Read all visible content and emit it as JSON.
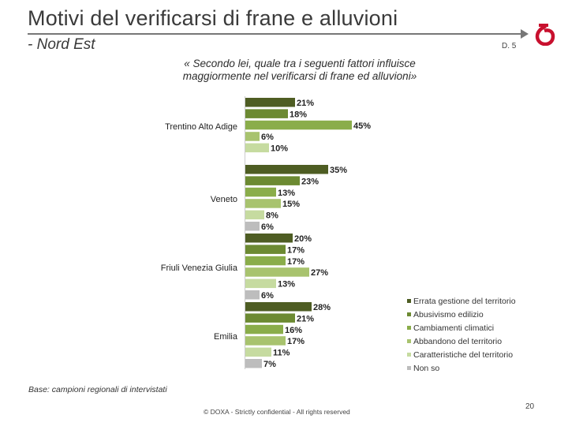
{
  "header": {
    "title": "Motivi del verificarsi di frane e alluvioni",
    "subtitle": "- Nord Est",
    "code": "D. 5"
  },
  "question": "« Secondo lei, quale tra i seguenti fattori influisce maggiormente nel verificarsi di frane ed alluvioni»",
  "base_note": "Base: campioni regionali di intervistati",
  "footer": {
    "copyright": "© DOXA - Strictly confidential - All rights reserved",
    "page": "20"
  },
  "colors": {
    "brand_red": "#c8102e",
    "rule": "#777777"
  },
  "chart_data": {
    "type": "bar",
    "orientation": "horizontal",
    "title": "",
    "xlabel": "",
    "ylabel": "",
    "xlim": [
      0,
      45
    ],
    "grid": false,
    "legend_position": "right",
    "value_suffix": "%",
    "series": [
      {
        "name": "Errata gestione del territorio",
        "color": "#4e5d23"
      },
      {
        "name": "Abusivismo edilizio",
        "color": "#6c8a32"
      },
      {
        "name": "Cambiamenti climatici",
        "color": "#8aad4a"
      },
      {
        "name": "Abbandono del territorio",
        "color": "#a8c36e"
      },
      {
        "name": "Caratteristiche del territorio",
        "color": "#c6dba0"
      },
      {
        "name": "Non so",
        "color": "#bdbdbd"
      }
    ],
    "groups": [
      {
        "label": "Trentino Alto Adige",
        "values": [
          21,
          18,
          45,
          6,
          10
        ]
      },
      {
        "label": "Veneto",
        "values": [
          35,
          23,
          13,
          15,
          8,
          6
        ]
      },
      {
        "label": "Friuli Venezia Giulia",
        "values": [
          20,
          17,
          17,
          27,
          13,
          6
        ]
      },
      {
        "label": "Emilia",
        "values": [
          28,
          21,
          16,
          17,
          11,
          7
        ]
      }
    ]
  }
}
